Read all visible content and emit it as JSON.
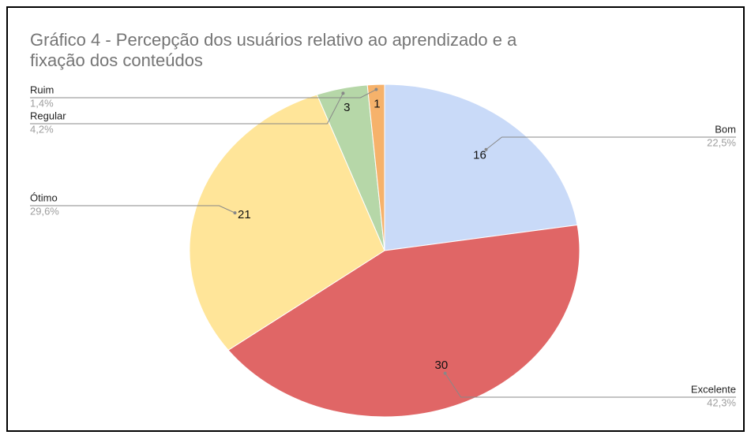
{
  "chart_data": {
    "type": "pie",
    "title": "Gráfico 4 -   Percepção dos usuários relativo ao aprendizado e a fixação dos conteúdos",
    "categories": [
      "Bom",
      "Excelente",
      "Ótimo",
      "Regular",
      "Ruim"
    ],
    "values": [
      16,
      30,
      21,
      3,
      1
    ],
    "percent_labels": [
      "22,5%",
      "42,3%",
      "29,6%",
      "4,2%",
      "1,4%"
    ],
    "colors": [
      "#c9daf8",
      "#e06666",
      "#ffe599",
      "#b6d7a8",
      "#f6b26b"
    ]
  }
}
